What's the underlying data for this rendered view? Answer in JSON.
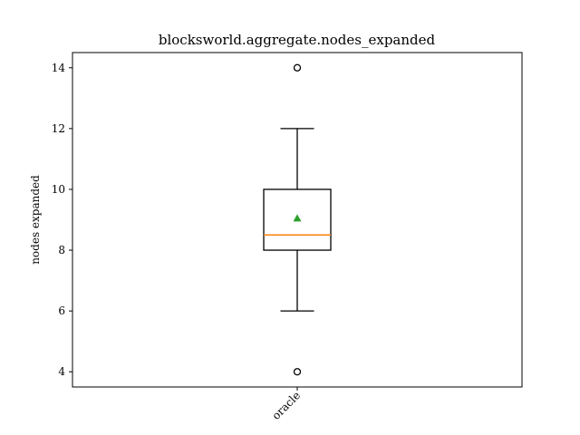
{
  "chart_data": {
    "type": "box",
    "title": "blocksworld.aggregate.nodes_expanded",
    "xlabel": "",
    "ylabel": "nodes expanded",
    "ylim": [
      3.5,
      14.5
    ],
    "yticks": [
      4,
      6,
      8,
      10,
      12,
      14
    ],
    "categories": [
      "oracle"
    ],
    "boxes": [
      {
        "category": "oracle",
        "whisker_low": 6,
        "q1": 8,
        "median": 8.5,
        "q3": 10,
        "whisker_high": 12,
        "mean": 9.05,
        "fliers": [
          4,
          14
        ]
      }
    ],
    "grid": false,
    "legend": "none"
  },
  "colors": {
    "median": "#ff7f0e",
    "mean": "#2ca02c",
    "box": "#000000"
  }
}
